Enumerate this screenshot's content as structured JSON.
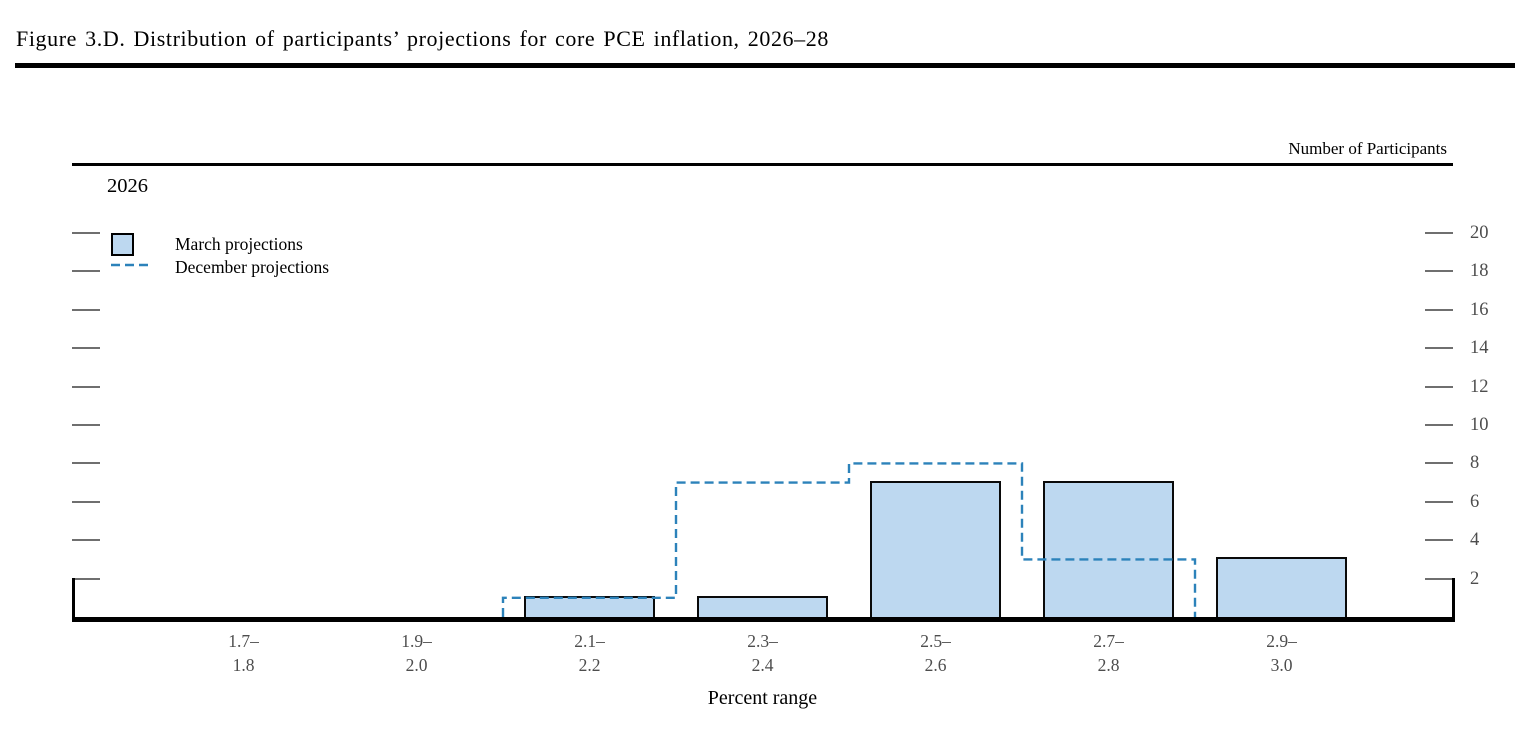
{
  "page": {
    "title": "Figure 3.D. Distribution of participants’ projections for core PCE inflation, 2026–28"
  },
  "chart": {
    "y_axis_title": "Number of Participants",
    "panel_label": "2026",
    "x_axis_title": "Percent range"
  },
  "chart_data": {
    "type": "bar",
    "title": "2026",
    "xlabel": "Percent range",
    "ylabel": "Number of Participants",
    "categories": [
      "1.7–1.8",
      "1.9–2.0",
      "2.1–2.2",
      "2.3–2.4",
      "2.5–2.6",
      "2.7–2.8",
      "2.9–3.0"
    ],
    "series": [
      {
        "name": "March projections",
        "type": "bar",
        "color": "#BDD8F0",
        "values": [
          0,
          0,
          1,
          1,
          7,
          7,
          3
        ]
      },
      {
        "name": "December projections",
        "type": "step-dashed",
        "color": "#2C82BA",
        "values": [
          0,
          0,
          1,
          7,
          8,
          3,
          0
        ]
      }
    ],
    "yticks": [
      2,
      4,
      6,
      8,
      10,
      12,
      14,
      16,
      18,
      20
    ],
    "ylim": [
      0,
      21
    ],
    "grid": false,
    "legend_position": "top-left"
  },
  "colors": {
    "bar_fill": "#BDD8F0",
    "bar_border": "#0a0a0a",
    "december_line": "#2C82BA",
    "tick_mark": "#6f6f6f",
    "tick_label": "#4d4d4d",
    "axis": "#000000"
  }
}
